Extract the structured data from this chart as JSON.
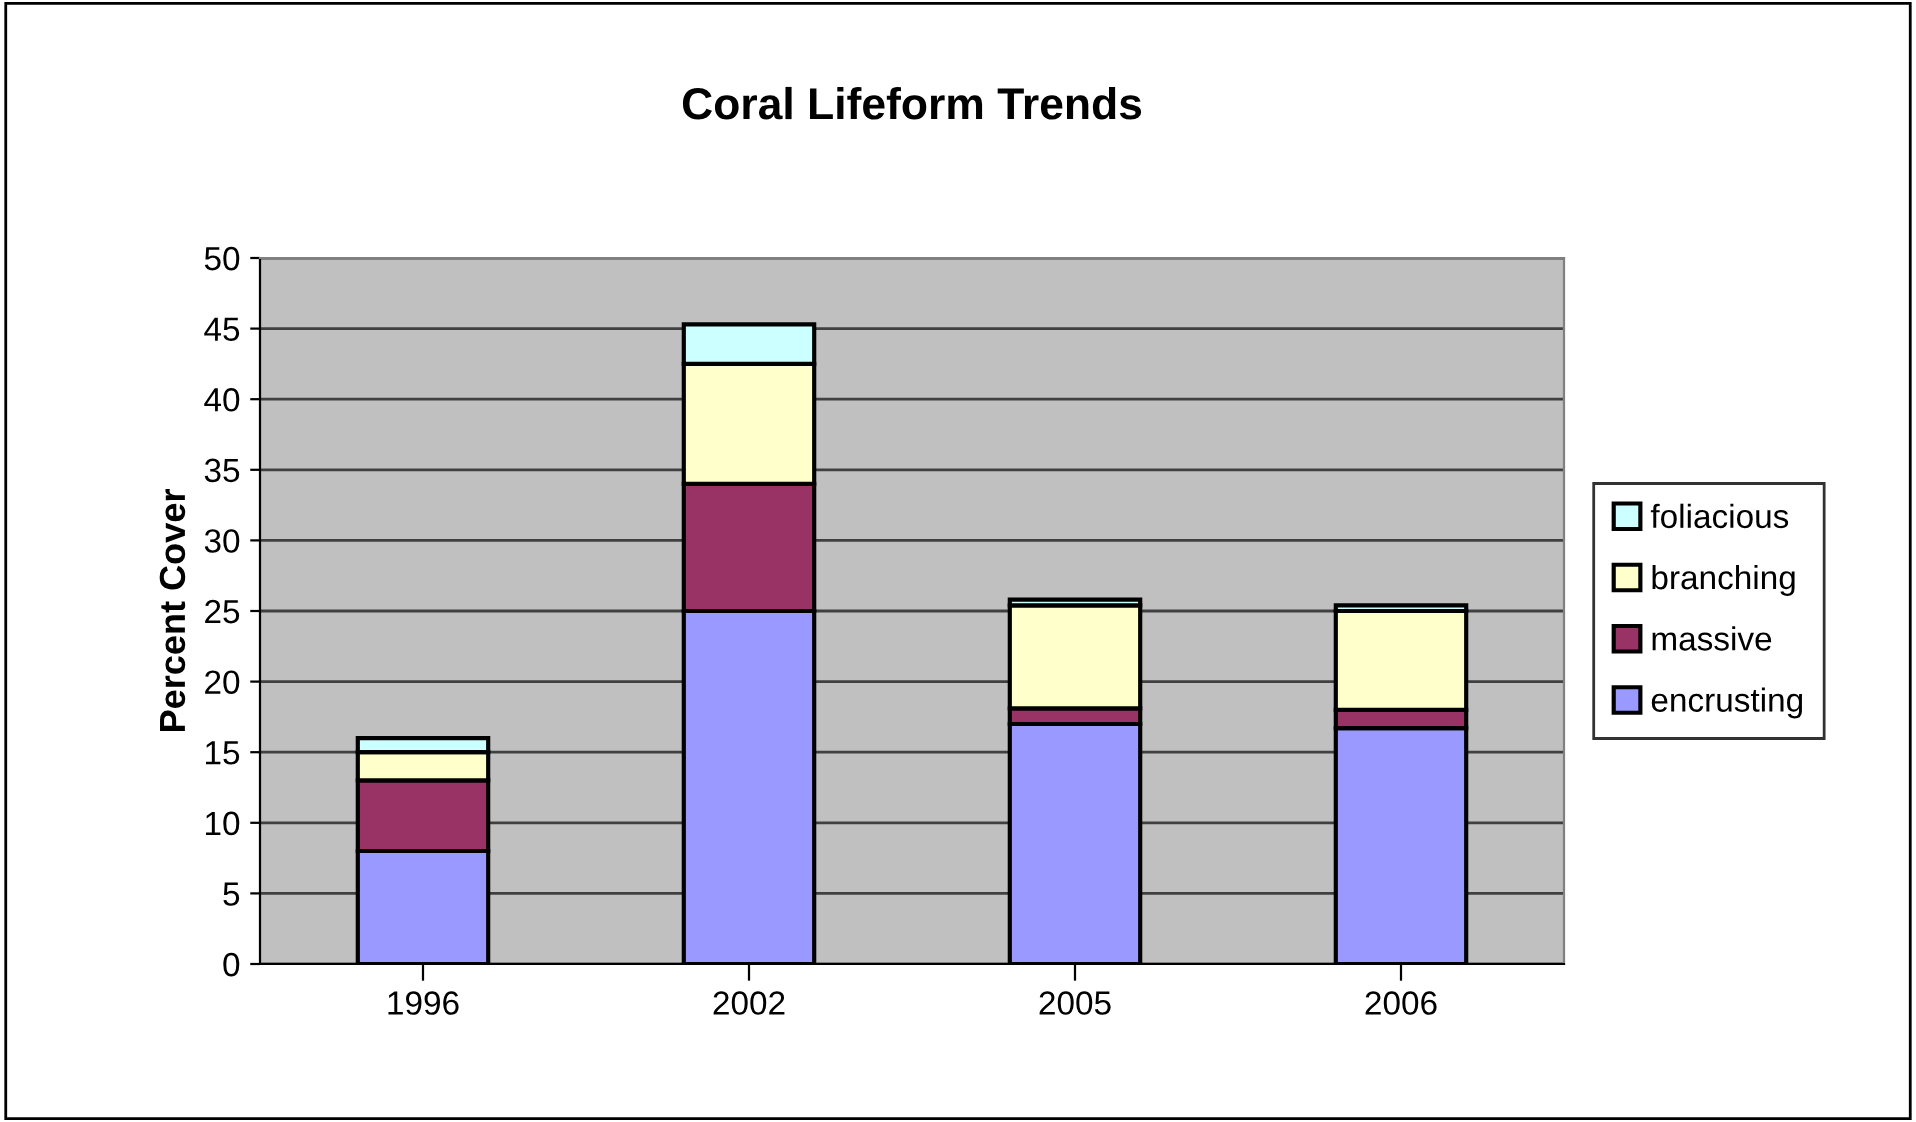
{
  "chart_data": {
    "type": "bar",
    "title": "Coral Lifeform Trends",
    "ylabel": "Percent Cover",
    "categories": [
      "1996",
      "2002",
      "2005",
      "2006"
    ],
    "stacked": true,
    "series": [
      {
        "name": "encrusting",
        "color": "#9999ff",
        "values": [
          8,
          25,
          17,
          16.7
        ]
      },
      {
        "name": "massive",
        "color": "#993366",
        "values": [
          5,
          9,
          1.1,
          1.3
        ]
      },
      {
        "name": "branching",
        "color": "#ffffcc",
        "values": [
          2,
          8.5,
          7.3,
          7
        ]
      },
      {
        "name": "foliacious",
        "color": "#ccffff",
        "values": [
          1,
          2.8,
          0.4,
          0.4
        ]
      }
    ],
    "ylim": [
      0,
      50
    ],
    "yticks": [
      0,
      5,
      10,
      15,
      20,
      25,
      30,
      35,
      40,
      45,
      50
    ],
    "grid": "y",
    "legend": "right"
  }
}
